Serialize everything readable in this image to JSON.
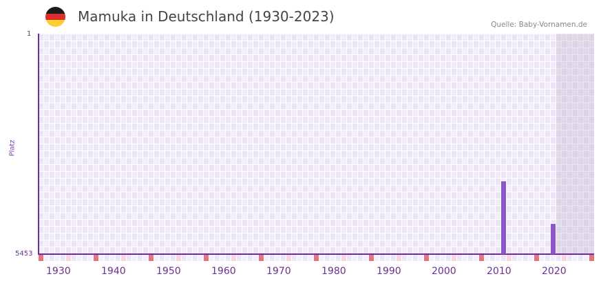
{
  "header": {
    "title": "Mamuka in Deutschland (1930-2023)",
    "source": "Quelle: Baby-Vornamen.de",
    "flag_colors": [
      "#1a1a1a",
      "#dd2c2c",
      "#fcd033"
    ]
  },
  "colors": {
    "bar": "#8c55c8",
    "axis": "#6a2f96",
    "grid_bg": "#f3effc",
    "marker_decade": "#e57480",
    "marker_mid": "#f6d5de"
  },
  "chart_data": {
    "type": "bar",
    "title": "Mamuka in Deutschland (1930-2023)",
    "xlabel": "",
    "ylabel": "Platz",
    "y_axis_inverted": true,
    "ylim": [
      5453,
      1
    ],
    "y_ticks": [
      "1",
      "5453"
    ],
    "x_ticks": [
      "1930",
      "1940",
      "1950",
      "1960",
      "1970",
      "1980",
      "1990",
      "2000",
      "2010",
      "2020"
    ],
    "x_range": [
      1928,
      2028
    ],
    "shaded_future_from": 2022,
    "grid": true,
    "categories": [
      2012,
      2021
    ],
    "values": [
      3650,
      4700
    ],
    "note": "values are approximate rank positions (Platz); lower rank number = taller bar"
  },
  "axis": {
    "y_top": "1",
    "y_bottom": "5453",
    "y_title": "Platz",
    "x_labels": [
      "1930",
      "1940",
      "1950",
      "1960",
      "1970",
      "1980",
      "1990",
      "2000",
      "2010",
      "2020"
    ]
  }
}
